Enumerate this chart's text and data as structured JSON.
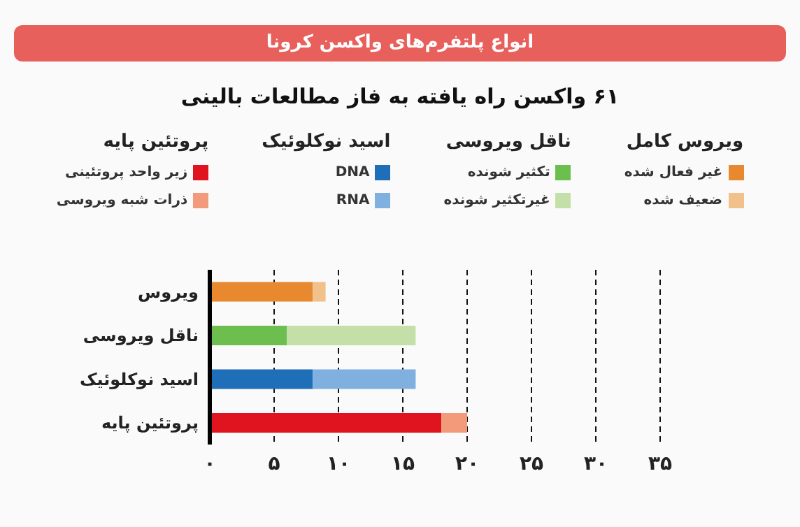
{
  "chart_data": {
    "type": "bar",
    "orientation": "horizontal",
    "stacked": true,
    "title": "انواع پلتفرم‌های واکسن کرونا",
    "subtitle": "۶۱ واکسن راه یافته به فاز مطالعات بالینی",
    "annotations": [
      "ویروس کامل",
      "ناقل ویروسی",
      "اسید نوکلوئیک",
      "پروتئین پایه"
    ],
    "categories": [
      "ویروس",
      "ناقل ویروسی",
      "اسید نوکلوئیک",
      "پروتئین پایه"
    ],
    "series": [
      {
        "name": "غیر فعال شده",
        "color": "#e8892f",
        "values": [
          8,
          null,
          null,
          null
        ]
      },
      {
        "name": "ضعیف شده",
        "color": "#f2c08a",
        "values": [
          1,
          null,
          null,
          null
        ]
      },
      {
        "name": "تکثیر شونده",
        "color": "#6cbf4f",
        "values": [
          null,
          6,
          null,
          null
        ]
      },
      {
        "name": "غیرتکثیر شونده",
        "color": "#c4e0a8",
        "values": [
          null,
          10,
          null,
          null
        ]
      },
      {
        "name": "DNA",
        "color": "#1f6fb8",
        "values": [
          null,
          null,
          8,
          null
        ]
      },
      {
        "name": "RNA",
        "color": "#7fb0e0",
        "values": [
          null,
          null,
          8,
          null
        ]
      },
      {
        "name": "زیر واحد پروتئینی",
        "color": "#e0141e",
        "values": [
          null,
          null,
          null,
          18
        ]
      },
      {
        "name": "ذرات شبه ویروسی",
        "color": "#f29a7a",
        "values": [
          null,
          null,
          null,
          2
        ]
      }
    ],
    "xlim": [
      0,
      35
    ],
    "xticks": [
      {
        "value": 0,
        "label": "۰"
      },
      {
        "value": 5,
        "label": "۵"
      },
      {
        "value": 10,
        "label": "۱۰"
      },
      {
        "value": 15,
        "label": "۱۵"
      },
      {
        "value": 20,
        "label": "۲۰"
      },
      {
        "value": 25,
        "label": "۲۵"
      },
      {
        "value": 30,
        "label": "۳۰"
      },
      {
        "value": 35,
        "label": "۳۵"
      }
    ],
    "grid": "x",
    "line_style": "dashed",
    "legend": "top"
  }
}
